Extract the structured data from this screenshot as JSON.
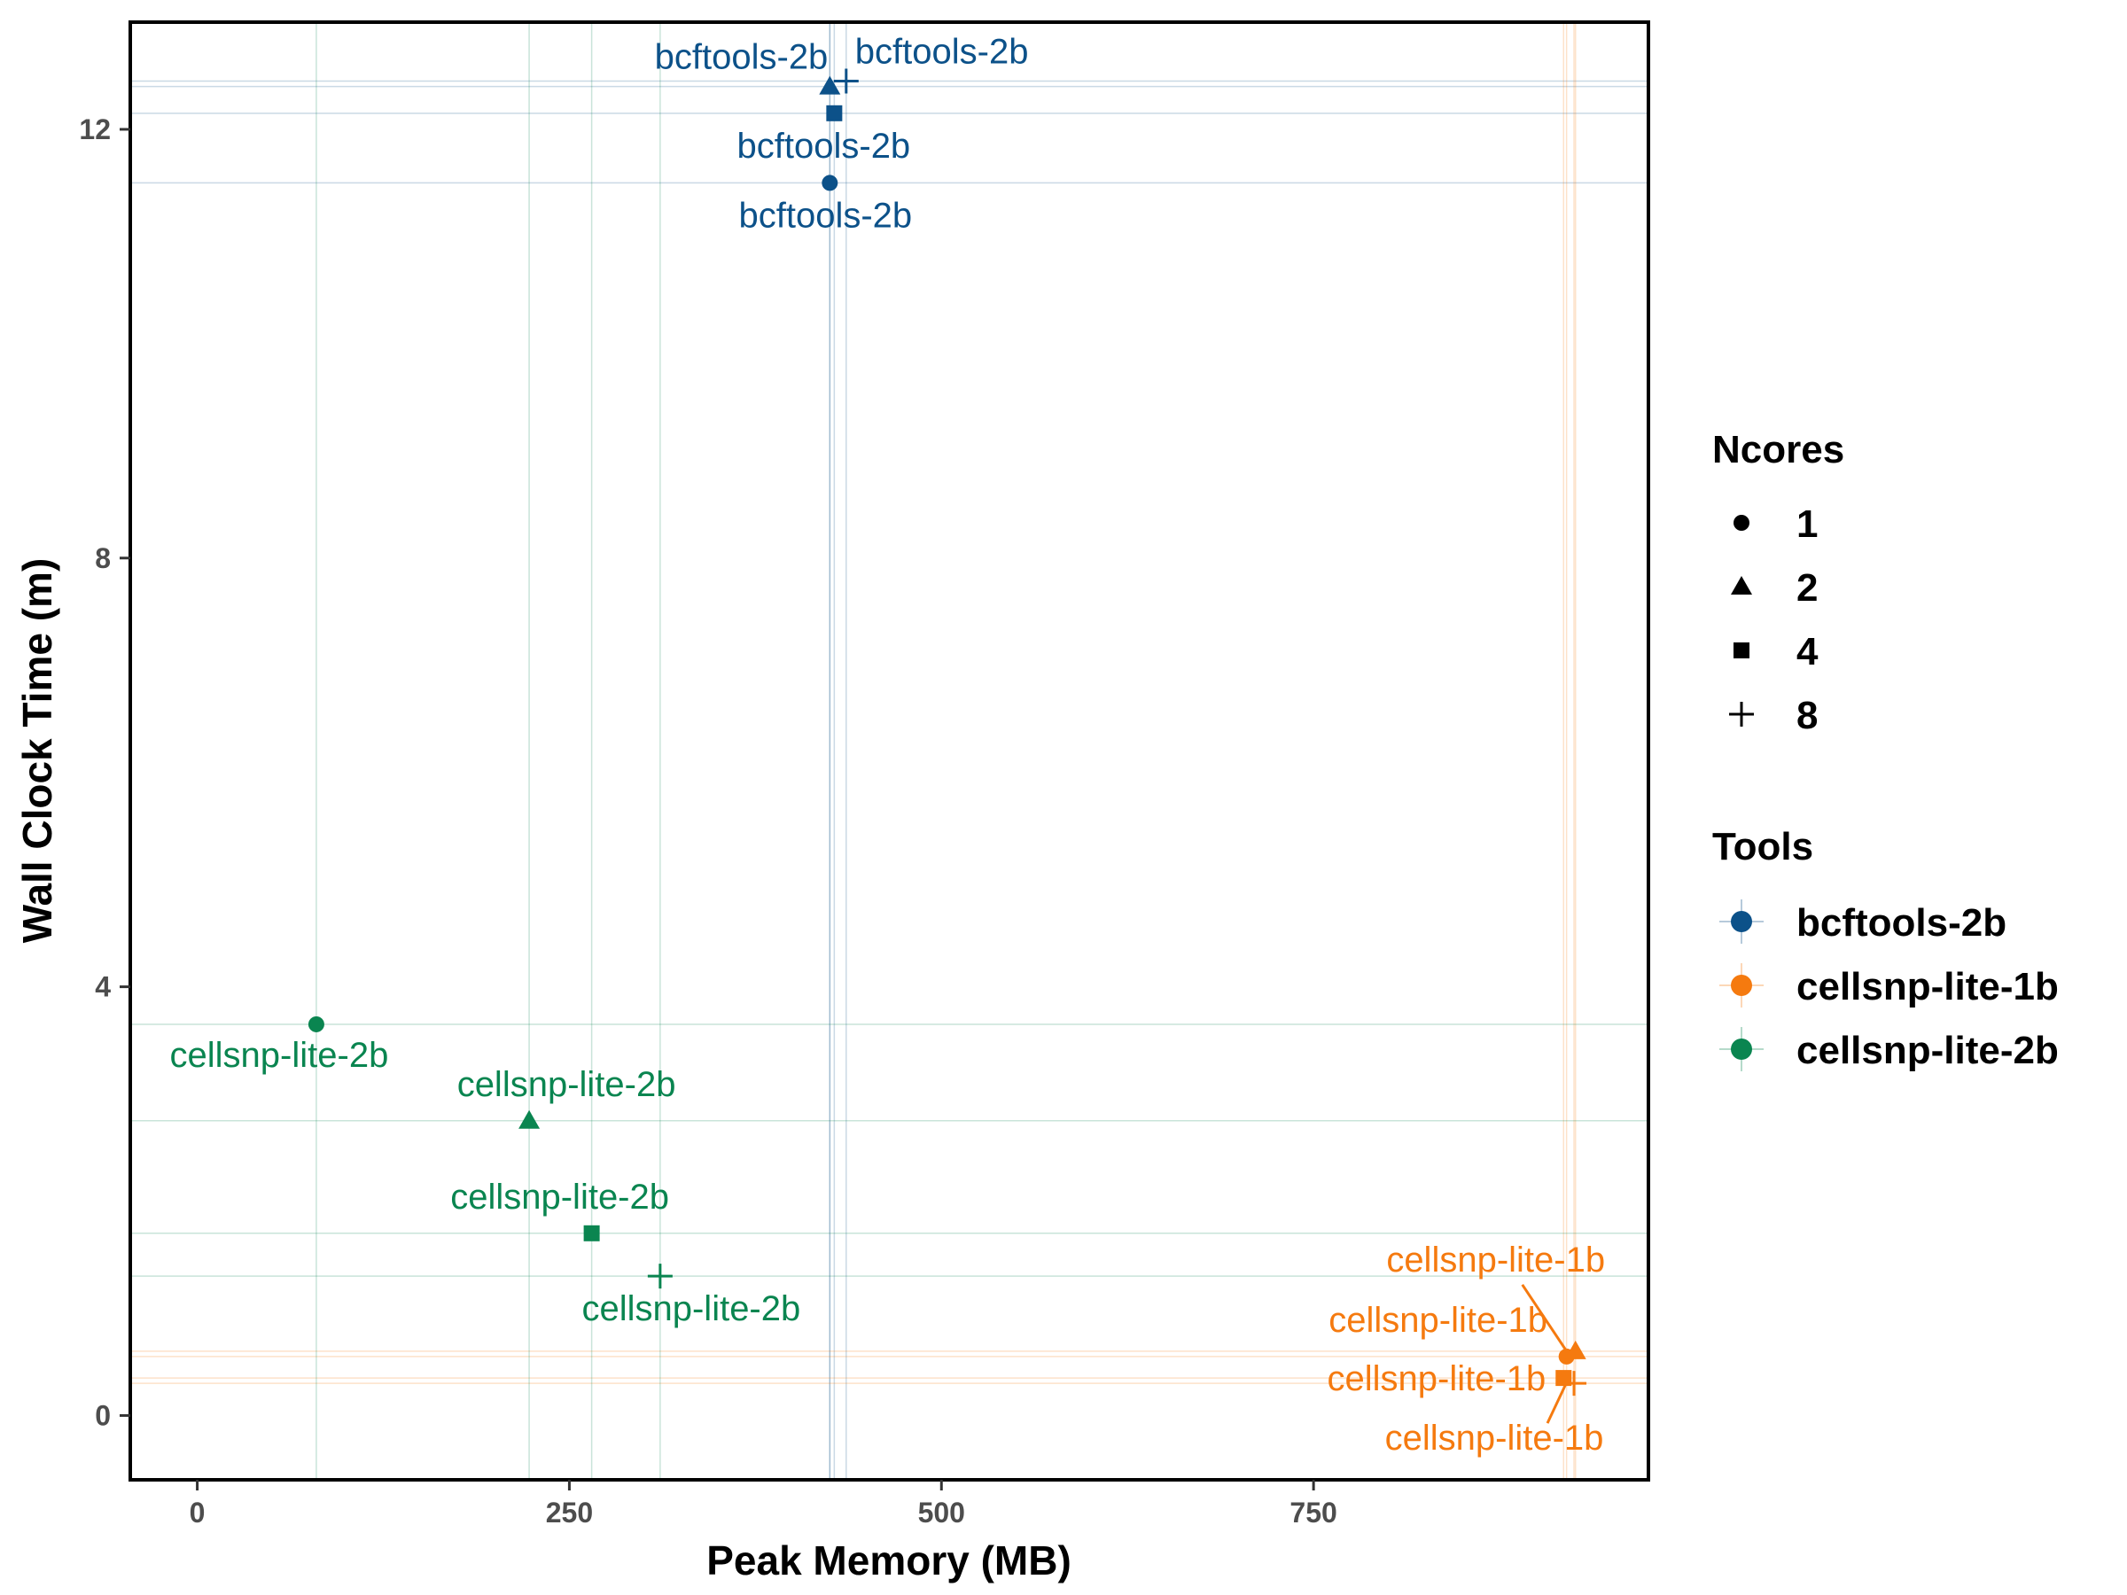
{
  "chart_data": {
    "type": "scatter",
    "xlabel": "Peak Memory (MB)",
    "ylabel": "Wall Clock Time (m)",
    "xlim": [
      -45,
      975
    ],
    "ylim": [
      -0.6,
      13.0
    ],
    "xticks": [
      0,
      250,
      500,
      750
    ],
    "yticks": [
      0,
      4,
      8,
      12
    ],
    "grid": false,
    "reference_lines": true,
    "legend_position": "right",
    "shape_legend": {
      "title": "Ncores",
      "entries": [
        {
          "label": "1",
          "shape": "circle"
        },
        {
          "label": "2",
          "shape": "triangle"
        },
        {
          "label": "4",
          "shape": "square"
        },
        {
          "label": "8",
          "shape": "plus"
        }
      ]
    },
    "color_legend": {
      "title": "Tools",
      "entries": [
        {
          "label": "bcftools-2b",
          "color": "#0C5189"
        },
        {
          "label": "cellsnp-lite-1b",
          "color": "#F57A0F"
        },
        {
          "label": "cellsnp-lite-2b",
          "color": "#0A8550"
        }
      ]
    },
    "series": [
      {
        "name": "bcftools-2b",
        "color": "#0C5189",
        "points": [
          {
            "ncores": "1",
            "x": 425,
            "y": 11.5,
            "label": "bcftools-2b"
          },
          {
            "ncores": "2",
            "x": 425,
            "y": 12.4,
            "label": "bcftools-2b"
          },
          {
            "ncores": "4",
            "x": 428,
            "y": 12.15,
            "label": "bcftools-2b"
          },
          {
            "ncores": "8",
            "x": 436,
            "y": 12.45,
            "label": "bcftools-2b"
          }
        ]
      },
      {
        "name": "cellsnp-lite-1b",
        "color": "#F57A0F",
        "points": [
          {
            "ncores": "1",
            "x": 920,
            "y": 0.55,
            "label": "cellsnp-lite-1b"
          },
          {
            "ncores": "2",
            "x": 926,
            "y": 0.6,
            "label": "cellsnp-lite-1b"
          },
          {
            "ncores": "4",
            "x": 918,
            "y": 0.35,
            "label": "cellsnp-lite-1b"
          },
          {
            "ncores": "8",
            "x": 925,
            "y": 0.3,
            "label": "cellsnp-lite-1b"
          }
        ]
      },
      {
        "name": "cellsnp-lite-2b",
        "color": "#0A8550",
        "points": [
          {
            "ncores": "1",
            "x": 80,
            "y": 3.65,
            "label": "cellsnp-lite-2b"
          },
          {
            "ncores": "2",
            "x": 223,
            "y": 2.75,
            "label": "cellsnp-lite-2b"
          },
          {
            "ncores": "4",
            "x": 265,
            "y": 1.7,
            "label": "cellsnp-lite-2b"
          },
          {
            "ncores": "8",
            "x": 311,
            "y": 1.3,
            "label": "cellsnp-lite-2b"
          }
        ]
      }
    ]
  }
}
